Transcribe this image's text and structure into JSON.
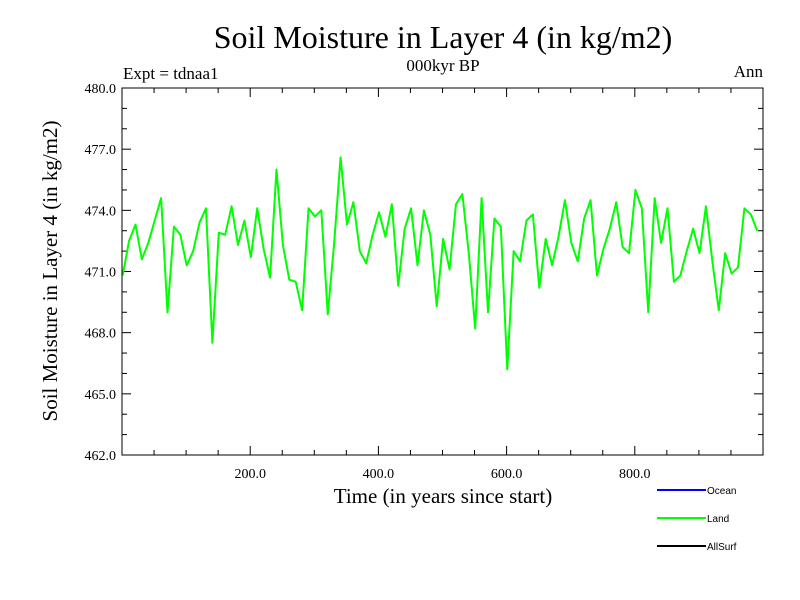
{
  "chart_data": {
    "type": "line",
    "title": "Soil Moisture in Layer 4 (in kg/m2)",
    "subtitle": "000kyr BP",
    "left_label": "Expt = tdnaa1",
    "right_label": "Ann",
    "xlabel": "Time (in years since start)",
    "ylabel": "Soil Moisture in Layer 4 (in kg/m2)",
    "xlim": [
      0,
      1000
    ],
    "ylim": [
      462.0,
      480.0
    ],
    "x_ticks": [
      200,
      400,
      600,
      800
    ],
    "x_tick_labels": [
      "200.0",
      "400.0",
      "600.0",
      "800.0"
    ],
    "y_ticks": [
      462,
      465,
      468,
      471,
      474,
      477,
      480
    ],
    "y_tick_labels": [
      "462.0",
      "465.0",
      "468.0",
      "471.0",
      "474.0",
      "477.0",
      "480.0"
    ],
    "legend": [
      {
        "name": "Ocean",
        "color": "#0000ff"
      },
      {
        "name": "Land",
        "color": "#00ff00"
      },
      {
        "name": "AllSurf",
        "color": "#000000"
      }
    ],
    "series": [
      {
        "name": "Land",
        "color": "#00ff00",
        "x_start": 1,
        "x_step": 10,
        "values": [
          470.8,
          472.5,
          473.3,
          471.6,
          472.4,
          473.5,
          474.6,
          469.0,
          473.2,
          472.8,
          471.3,
          472.0,
          473.4,
          474.1,
          467.5,
          472.9,
          472.8,
          474.2,
          472.3,
          473.5,
          471.7,
          474.1,
          472.1,
          470.7,
          476.0,
          472.3,
          470.6,
          470.5,
          469.1,
          474.1,
          473.7,
          474.0,
          468.9,
          472.4,
          476.6,
          473.3,
          474.4,
          472.0,
          471.4,
          472.8,
          473.9,
          472.7,
          474.3,
          470.3,
          473.1,
          474.1,
          471.3,
          474.0,
          472.8,
          469.3,
          472.6,
          471.1,
          474.3,
          474.8,
          471.9,
          468.2,
          474.6,
          469.0,
          473.6,
          473.2,
          466.2,
          472.0,
          471.5,
          473.5,
          473.8,
          470.2,
          472.6,
          471.3,
          472.7,
          474.5,
          472.4,
          471.5,
          473.6,
          474.5,
          470.8,
          472.1,
          473.1,
          474.4,
          472.2,
          471.9,
          475.0,
          474.1,
          469.0,
          474.6,
          472.4,
          474.1,
          470.5,
          470.8,
          472.0,
          473.1,
          471.9,
          474.2,
          471.5,
          469.1,
          471.9,
          470.9,
          471.2,
          474.1,
          473.8,
          473.0
        ]
      }
    ]
  }
}
